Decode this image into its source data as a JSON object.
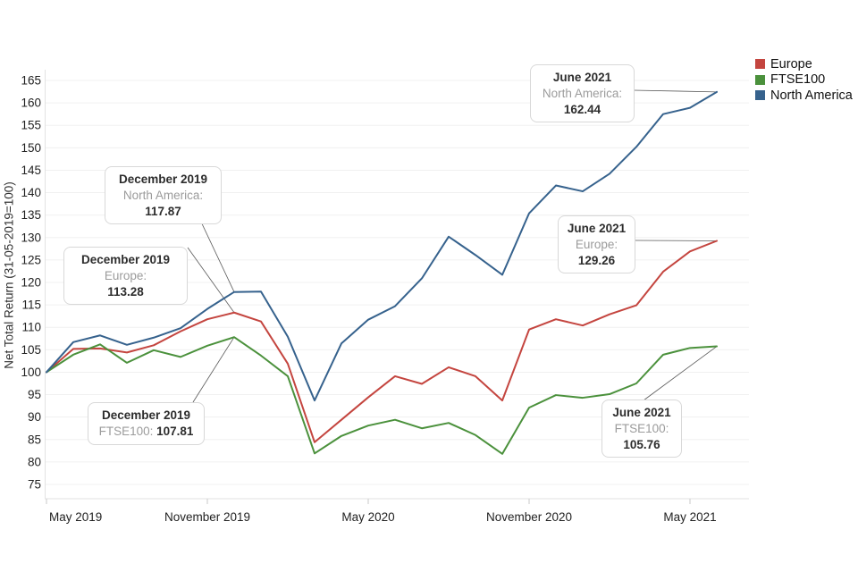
{
  "figure": {
    "y_axis_title": "Net Total Return (31-05-2019=100)"
  },
  "legend": {
    "position": "top-right",
    "items": [
      {
        "label": "Europe",
        "color": "#c4453f"
      },
      {
        "label": "FTSE100",
        "color": "#4b913c"
      },
      {
        "label": "North America",
        "color": "#36628d"
      }
    ]
  },
  "chart_data": {
    "type": "line",
    "title": "",
    "xlabel": "",
    "ylabel": "Net Total Return (31-05-2019=100)",
    "grid": true,
    "ylim": [
      71,
      168
    ],
    "y_ticks": [
      75,
      80,
      85,
      90,
      95,
      100,
      105,
      110,
      115,
      120,
      125,
      130,
      135,
      140,
      145,
      150,
      155,
      160,
      165
    ],
    "x_ticks": [
      {
        "label": "May 2019",
        "month_index": 0
      },
      {
        "label": "November 2019",
        "month_index": 6
      },
      {
        "label": "May 2020",
        "month_index": 12
      },
      {
        "label": "November 2020",
        "month_index": 18
      },
      {
        "label": "May 2021",
        "month_index": 24
      }
    ],
    "months": [
      "May 2019",
      "Jun 2019",
      "Jul 2019",
      "Aug 2019",
      "Sep 2019",
      "Oct 2019",
      "Nov 2019",
      "Dec 2019",
      "Jan 2020",
      "Feb 2020",
      "Mar 2020",
      "Apr 2020",
      "May 2020",
      "Jun 2020",
      "Jul 2020",
      "Aug 2020",
      "Sep 2020",
      "Oct 2020",
      "Nov 2020",
      "Dec 2020",
      "Jan 2021",
      "Feb 2021",
      "Mar 2021",
      "Apr 2021",
      "May 2021",
      "Jun 2021"
    ],
    "series": [
      {
        "name": "Europe",
        "color": "#c4453f",
        "values": [
          100,
          105.2,
          105.3,
          104.4,
          106.0,
          109.1,
          111.8,
          113.28,
          111.3,
          101.9,
          84.4,
          89.4,
          94.4,
          99.1,
          97.4,
          101.1,
          99.1,
          93.7,
          109.5,
          111.8,
          110.4,
          112.9,
          114.9,
          122.4,
          126.9,
          129.26
        ]
      },
      {
        "name": "FTSE100",
        "color": "#4b913c",
        "values": [
          100,
          103.9,
          106.2,
          102.1,
          104.9,
          103.4,
          105.9,
          107.81,
          103.7,
          99.1,
          81.9,
          85.8,
          88.1,
          89.4,
          87.5,
          88.7,
          86.0,
          81.8,
          92.1,
          94.9,
          94.3,
          95.1,
          97.5,
          103.9,
          105.4,
          105.76
        ]
      },
      {
        "name": "North America",
        "color": "#36628d",
        "values": [
          100,
          106.7,
          108.2,
          106.1,
          107.7,
          109.8,
          114.1,
          117.87,
          117.95,
          107.9,
          93.7,
          106.4,
          111.7,
          114.7,
          120.9,
          130.2,
          126.1,
          121.7,
          135.4,
          141.6,
          140.3,
          144.2,
          150.2,
          157.5,
          158.9,
          162.44
        ]
      }
    ]
  },
  "annotations": [
    {
      "title": "December 2019",
      "label": "North America:",
      "value": "117.87"
    },
    {
      "title": "December 2019",
      "label": "Europe:",
      "value": "113.28"
    },
    {
      "title": "December 2019",
      "label": "FTSE100:",
      "value": "107.81"
    },
    {
      "title": "June 2021",
      "label": "North America:",
      "value": "162.44"
    },
    {
      "title": "June 2021",
      "label": "Europe:",
      "value": "129.26"
    },
    {
      "title": "June 2021",
      "label": "FTSE100:",
      "value": "105.76"
    }
  ]
}
